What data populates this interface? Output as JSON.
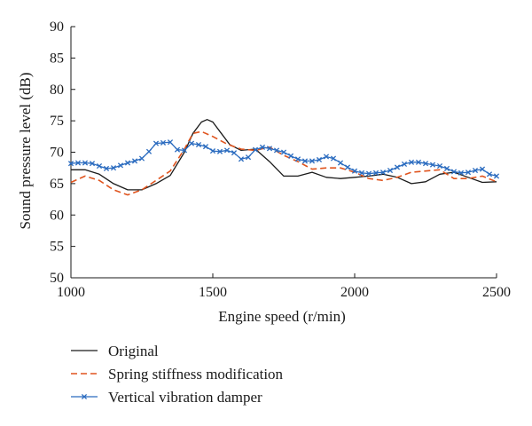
{
  "chart_data": {
    "type": "line",
    "title": "",
    "xlabel": "Engine speed (r/min)",
    "ylabel": "Sound pressure level (dB)",
    "xlim": [
      1000,
      2500
    ],
    "ylim": [
      50,
      90
    ],
    "xticks": [
      1000,
      1500,
      2000,
      2500
    ],
    "yticks": [
      50,
      55,
      60,
      65,
      70,
      75,
      80,
      85,
      90
    ],
    "grid": false,
    "legend_position": "bottom",
    "series": [
      {
        "name": "Original",
        "color": "#1a1a1a",
        "style": "solid",
        "marker": "none",
        "x": [
          1000,
          1050,
          1100,
          1150,
          1200,
          1250,
          1300,
          1350,
          1400,
          1430,
          1460,
          1480,
          1500,
          1530,
          1560,
          1600,
          1650,
          1700,
          1750,
          1800,
          1850,
          1900,
          1950,
          2000,
          2050,
          2100,
          2150,
          2200,
          2250,
          2300,
          2350,
          2400,
          2450,
          2500
        ],
        "y": [
          67.2,
          67.2,
          66.5,
          65.0,
          64.0,
          64.0,
          65.0,
          66.3,
          70.0,
          73.0,
          74.8,
          75.2,
          74.8,
          73.0,
          71.2,
          70.3,
          70.5,
          68.5,
          66.2,
          66.2,
          66.8,
          66.0,
          65.8,
          66.0,
          66.2,
          66.5,
          66.0,
          65.0,
          65.3,
          66.5,
          66.8,
          66.0,
          65.2,
          65.3
        ]
      },
      {
        "name": "Spring stiffness modification",
        "color": "#e0541e",
        "style": "dashed",
        "marker": "none",
        "x": [
          1000,
          1050,
          1100,
          1150,
          1200,
          1250,
          1300,
          1350,
          1400,
          1430,
          1460,
          1500,
          1550,
          1600,
          1650,
          1700,
          1750,
          1800,
          1850,
          1900,
          1950,
          2000,
          2050,
          2100,
          2150,
          2200,
          2250,
          2300,
          2350,
          2400,
          2450,
          2500
        ],
        "y": [
          65.2,
          66.2,
          65.5,
          64.0,
          63.2,
          64.0,
          65.5,
          67.0,
          70.5,
          73.0,
          73.3,
          72.5,
          71.3,
          70.5,
          70.3,
          70.8,
          69.5,
          68.5,
          67.3,
          67.5,
          67.5,
          66.8,
          65.8,
          65.5,
          66.0,
          66.8,
          67.0,
          67.2,
          65.8,
          65.8,
          66.2,
          65.3
        ]
      },
      {
        "name": "Vertical vibration damper",
        "color": "#2a6bbf",
        "style": "solid",
        "marker": "x",
        "x": [
          1000,
          1025,
          1050,
          1075,
          1100,
          1125,
          1150,
          1175,
          1200,
          1225,
          1250,
          1275,
          1300,
          1325,
          1350,
          1375,
          1400,
          1425,
          1450,
          1475,
          1500,
          1525,
          1550,
          1575,
          1600,
          1625,
          1650,
          1675,
          1700,
          1725,
          1750,
          1775,
          1800,
          1825,
          1850,
          1875,
          1900,
          1925,
          1950,
          1975,
          2000,
          2025,
          2050,
          2075,
          2100,
          2125,
          2150,
          2175,
          2200,
          2225,
          2250,
          2275,
          2300,
          2325,
          2350,
          2375,
          2400,
          2425,
          2450,
          2475,
          2500
        ],
        "y": [
          68.2,
          68.3,
          68.3,
          68.2,
          67.8,
          67.4,
          67.5,
          67.9,
          68.3,
          68.6,
          69.0,
          70.1,
          71.4,
          71.5,
          71.6,
          70.4,
          70.3,
          71.4,
          71.2,
          70.9,
          70.2,
          70.1,
          70.3,
          69.9,
          68.9,
          69.2,
          70.4,
          70.8,
          70.6,
          70.3,
          70.0,
          69.4,
          68.9,
          68.6,
          68.6,
          68.8,
          69.3,
          69.0,
          68.3,
          67.6,
          67.0,
          66.7,
          66.6,
          66.7,
          66.8,
          67.1,
          67.6,
          68.1,
          68.4,
          68.4,
          68.2,
          68.0,
          67.8,
          67.4,
          66.9,
          66.7,
          66.8,
          67.1,
          67.3,
          66.5,
          66.2
        ]
      }
    ]
  }
}
